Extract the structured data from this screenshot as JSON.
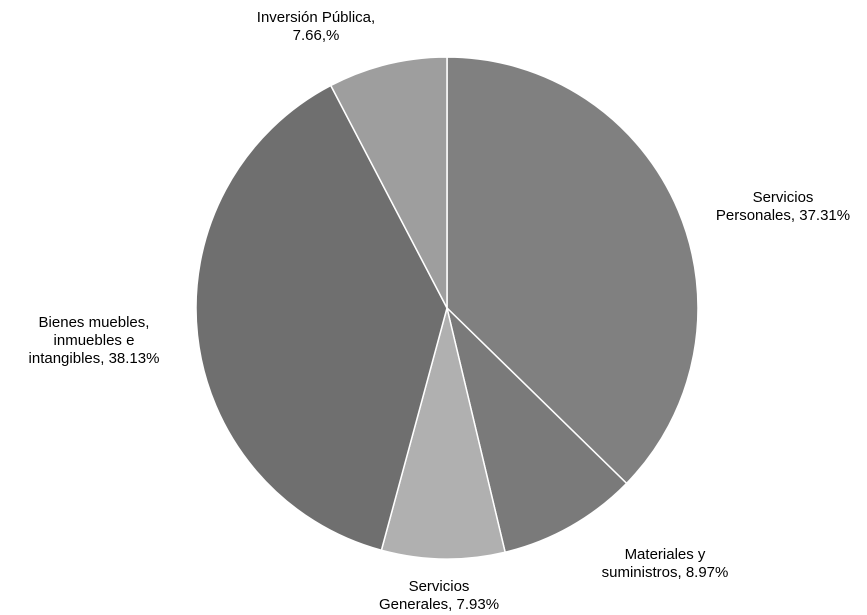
{
  "chart_data": {
    "type": "pie",
    "title": "",
    "slices": [
      {
        "category": "Servicios Personales",
        "value": 37.31,
        "label_lines": [
          "Servicios",
          "Personales, 37.31%"
        ],
        "color": "#808080"
      },
      {
        "category": "Materiales y suministros",
        "value": 8.97,
        "label_lines": [
          "Materiales y",
          "suministros, 8.97%"
        ],
        "color": "#7a7a7a"
      },
      {
        "category": "Servicios Generales",
        "value": 7.93,
        "label_lines": [
          "Servicios",
          "Generales, 7.93%"
        ],
        "color": "#b0b0b0"
      },
      {
        "category": "Bienes muebles, inmuebles e intangibles",
        "value": 38.13,
        "label_lines": [
          "Bienes muebles,",
          "inmuebles e",
          "intangibles, 38.13%"
        ],
        "color": "#6f6f6f"
      },
      {
        "category": "Inversión Pública",
        "value": 7.66,
        "label_lines": [
          "Inversión Pública,",
          "7.66,%"
        ],
        "color": "#9e9e9e"
      }
    ],
    "start": "12 o'clock",
    "direction": "clockwise",
    "legend": "none",
    "border_color": "#ffffff"
  }
}
